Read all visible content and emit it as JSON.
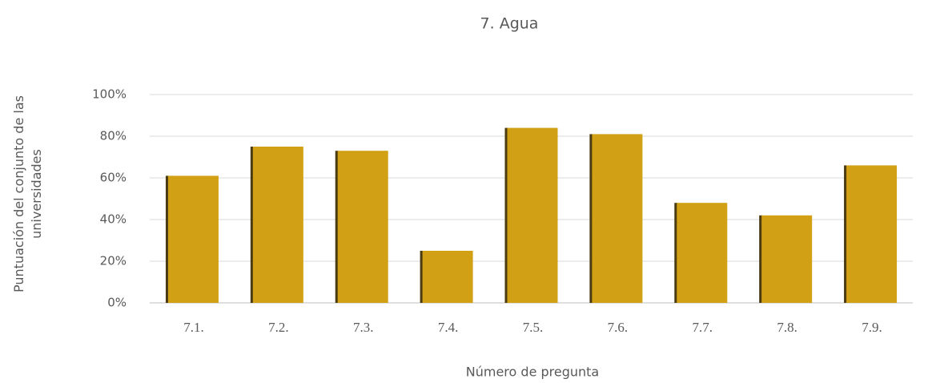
{
  "chart_data": {
    "type": "bar",
    "title": "7. Agua",
    "x_label": "Número de pregunta",
    "y_label": "Puntuación del conjunto de las universidades",
    "categories": [
      "7.1.",
      "7.2.",
      "7.3.",
      "7.4.",
      "7.5.",
      "7.6.",
      "7.7.",
      "7.8.",
      "7.9."
    ],
    "values": [
      61,
      75,
      73,
      25,
      84,
      81,
      48,
      42,
      66
    ],
    "color": "#d1a014",
    "ylim": [
      0,
      100
    ],
    "yticks": [
      {
        "value": 0,
        "label": "0%"
      },
      {
        "value": 20,
        "label": "20%"
      },
      {
        "value": 40,
        "label": "40%"
      },
      {
        "value": 60,
        "label": "60%"
      },
      {
        "value": 80,
        "label": "80%"
      },
      {
        "value": 100,
        "label": "100%"
      }
    ],
    "grid": true
  }
}
